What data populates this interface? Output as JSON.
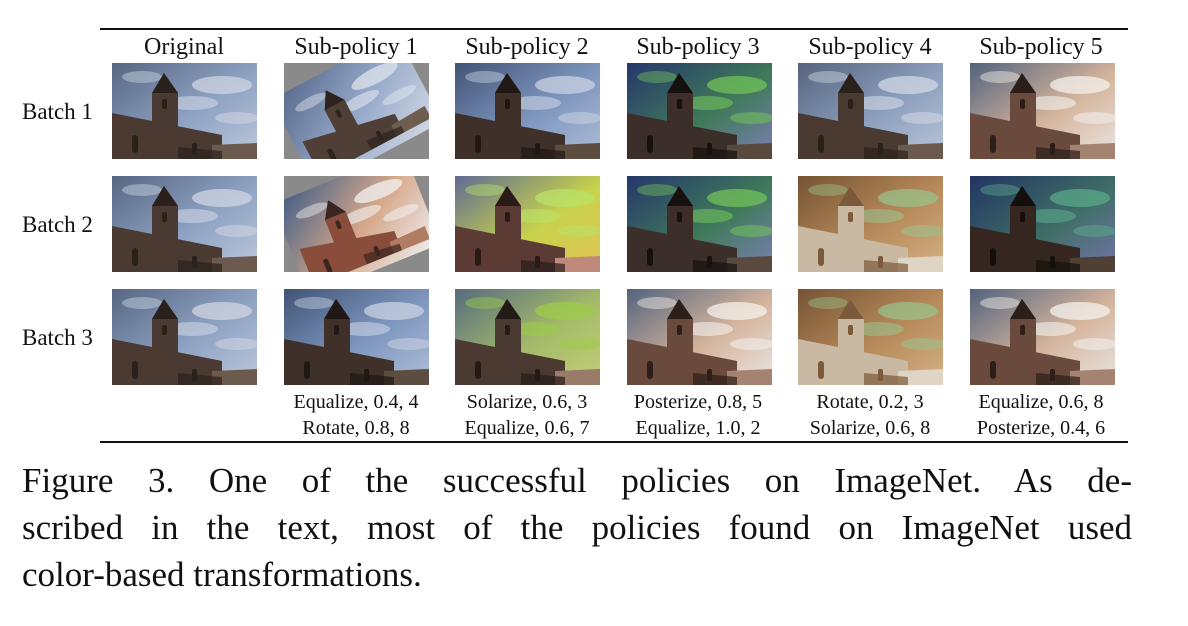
{
  "columns": [
    "Original",
    "Sub-policy 1",
    "Sub-policy 2",
    "Sub-policy 3",
    "Sub-policy 4",
    "Sub-policy 5"
  ],
  "rows": [
    "Batch 1",
    "Batch 2",
    "Batch 3"
  ],
  "images": [
    [
      "church-original",
      "church-rotated-left",
      "church-equalized",
      "church-posterized",
      "church-plain",
      "church-equalized-bright"
    ],
    [
      "church-original",
      "church-rotated-right",
      "church-solarized",
      "church-posterized",
      "church-solarized-sepia",
      "church-posterized-dark"
    ],
    [
      "church-original",
      "church-equalized",
      "church-solarized-light",
      "church-equalized-bright",
      "church-solarized-sepia",
      "church-equalized-bright"
    ]
  ],
  "subpolicy_ops": [
    {
      "op1": "Equalize, 0.4, 4",
      "op2": "Rotate, 0.8, 8"
    },
    {
      "op1": "Solarize, 0.6, 3",
      "op2": "Equalize, 0.6, 7"
    },
    {
      "op1": "Posterize, 0.8, 5",
      "op2": "Equalize, 1.0, 2"
    },
    {
      "op1": "Rotate, 0.2, 3",
      "op2": "Solarize, 0.6, 8"
    },
    {
      "op1": "Equalize, 0.6, 8",
      "op2": "Posterize, 0.4, 6"
    }
  ],
  "caption": {
    "line1": "Figure 3. One of the successful policies on ImageNet.  As de-",
    "line2": "scribed in the text, most of the policies found on ImageNet used",
    "line3": "color-based transformations."
  }
}
